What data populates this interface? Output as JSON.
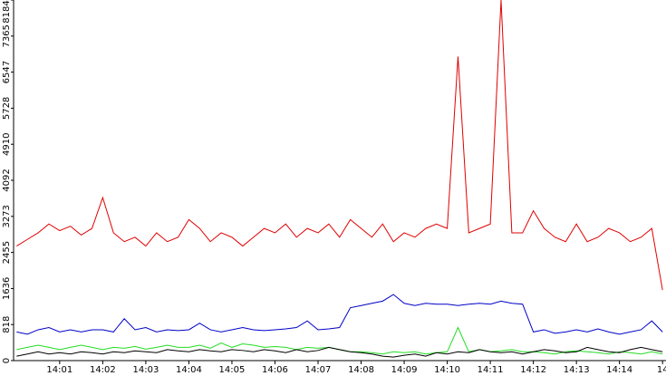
{
  "chart_data": {
    "type": "line",
    "x": [
      0,
      0.25,
      0.5,
      0.75,
      1,
      1.25,
      1.5,
      1.75,
      2,
      2.25,
      2.5,
      2.75,
      3,
      3.25,
      3.5,
      3.75,
      4,
      4.25,
      4.5,
      4.75,
      5,
      5.25,
      5.5,
      5.75,
      6,
      6.25,
      6.5,
      6.75,
      7,
      7.25,
      7.5,
      7.75,
      8,
      8.25,
      8.5,
      8.75,
      9,
      9.25,
      9.5,
      9.75,
      10,
      10.25,
      10.5,
      10.75,
      11,
      11.25,
      11.5,
      11.75,
      12,
      12.25,
      12.5,
      12.75,
      13,
      13.25,
      13.5,
      13.75,
      14,
      14.25,
      14.5,
      14.75,
      15
    ],
    "series": [
      {
        "color": "#e00000",
        "values": [
          2600,
          2750,
          2900,
          3100,
          2950,
          3050,
          2850,
          3000,
          3700,
          2900,
          2700,
          2800,
          2600,
          2900,
          2700,
          2800,
          3200,
          3000,
          2700,
          2900,
          2800,
          2600,
          2800,
          3000,
          2900,
          3100,
          2800,
          3000,
          2900,
          3100,
          2800,
          3200,
          3000,
          2800,
          3100,
          2700,
          2900,
          2800,
          3000,
          3100,
          3000,
          6900,
          2900,
          3000,
          3100,
          8184,
          2900,
          2900,
          3400,
          3000,
          2800,
          2700,
          3100,
          2700,
          2800,
          3000,
          2900,
          2700,
          2800,
          3000,
          1600
        ]
      },
      {
        "color": "#0000c8",
        "values": [
          650,
          600,
          700,
          750,
          650,
          700,
          650,
          700,
          700,
          650,
          950,
          700,
          750,
          650,
          700,
          680,
          700,
          850,
          700,
          650,
          700,
          750,
          700,
          680,
          700,
          720,
          750,
          900,
          700,
          720,
          750,
          1200,
          1250,
          1300,
          1350,
          1500,
          1300,
          1250,
          1300,
          1280,
          1280,
          1250,
          1280,
          1300,
          1280,
          1350,
          1300,
          1280,
          650,
          700,
          620,
          650,
          700,
          650,
          720,
          650,
          600,
          650,
          700,
          900,
          650
        ]
      },
      {
        "color": "#22dd22",
        "values": [
          250,
          300,
          350,
          300,
          250,
          300,
          350,
          300,
          250,
          300,
          280,
          320,
          260,
          300,
          350,
          300,
          300,
          350,
          280,
          400,
          300,
          380,
          350,
          300,
          320,
          300,
          250,
          300,
          280,
          300,
          250,
          200,
          200,
          180,
          150,
          200,
          180,
          200,
          150,
          180,
          200,
          750,
          200,
          250,
          200,
          220,
          250,
          200,
          200,
          180,
          150,
          200,
          220,
          200,
          180,
          150,
          200,
          180,
          150,
          200,
          150
        ]
      },
      {
        "color": "#000000",
        "values": [
          100,
          150,
          200,
          150,
          180,
          150,
          200,
          180,
          150,
          200,
          180,
          220,
          200,
          180,
          250,
          220,
          200,
          250,
          220,
          200,
          250,
          230,
          200,
          250,
          220,
          180,
          250,
          200,
          230,
          300,
          250,
          200,
          180,
          150,
          100,
          80,
          120,
          150,
          100,
          180,
          150,
          200,
          180,
          250,
          200,
          180,
          200,
          150,
          200,
          250,
          220,
          180,
          200,
          300,
          250,
          200,
          180,
          250,
          300,
          250,
          200
        ]
      }
    ],
    "xlim": [
      -0.07,
      15.08
    ],
    "xticks": [
      {
        "value": 1,
        "label": "14:01"
      },
      {
        "value": 2,
        "label": "14:02"
      },
      {
        "value": 3,
        "label": "14:03"
      },
      {
        "value": 4,
        "label": "14:04"
      },
      {
        "value": 5,
        "label": "14:05"
      },
      {
        "value": 6,
        "label": "14:06"
      },
      {
        "value": 7,
        "label": "14:07"
      },
      {
        "value": 8,
        "label": "14:08"
      },
      {
        "value": 9,
        "label": "14:09"
      },
      {
        "value": 10,
        "label": "14:10"
      },
      {
        "value": 11,
        "label": "14:11"
      },
      {
        "value": 12,
        "label": "14:12"
      },
      {
        "value": 13,
        "label": "14:13"
      },
      {
        "value": 14,
        "label": "14:14"
      },
      {
        "value": 15,
        "label": "14"
      }
    ],
    "ylim": [
      0,
      8184
    ],
    "yticks": [
      0,
      818,
      1636,
      2455,
      3273,
      4092,
      4910,
      5728,
      6547,
      7365,
      8184
    ]
  }
}
